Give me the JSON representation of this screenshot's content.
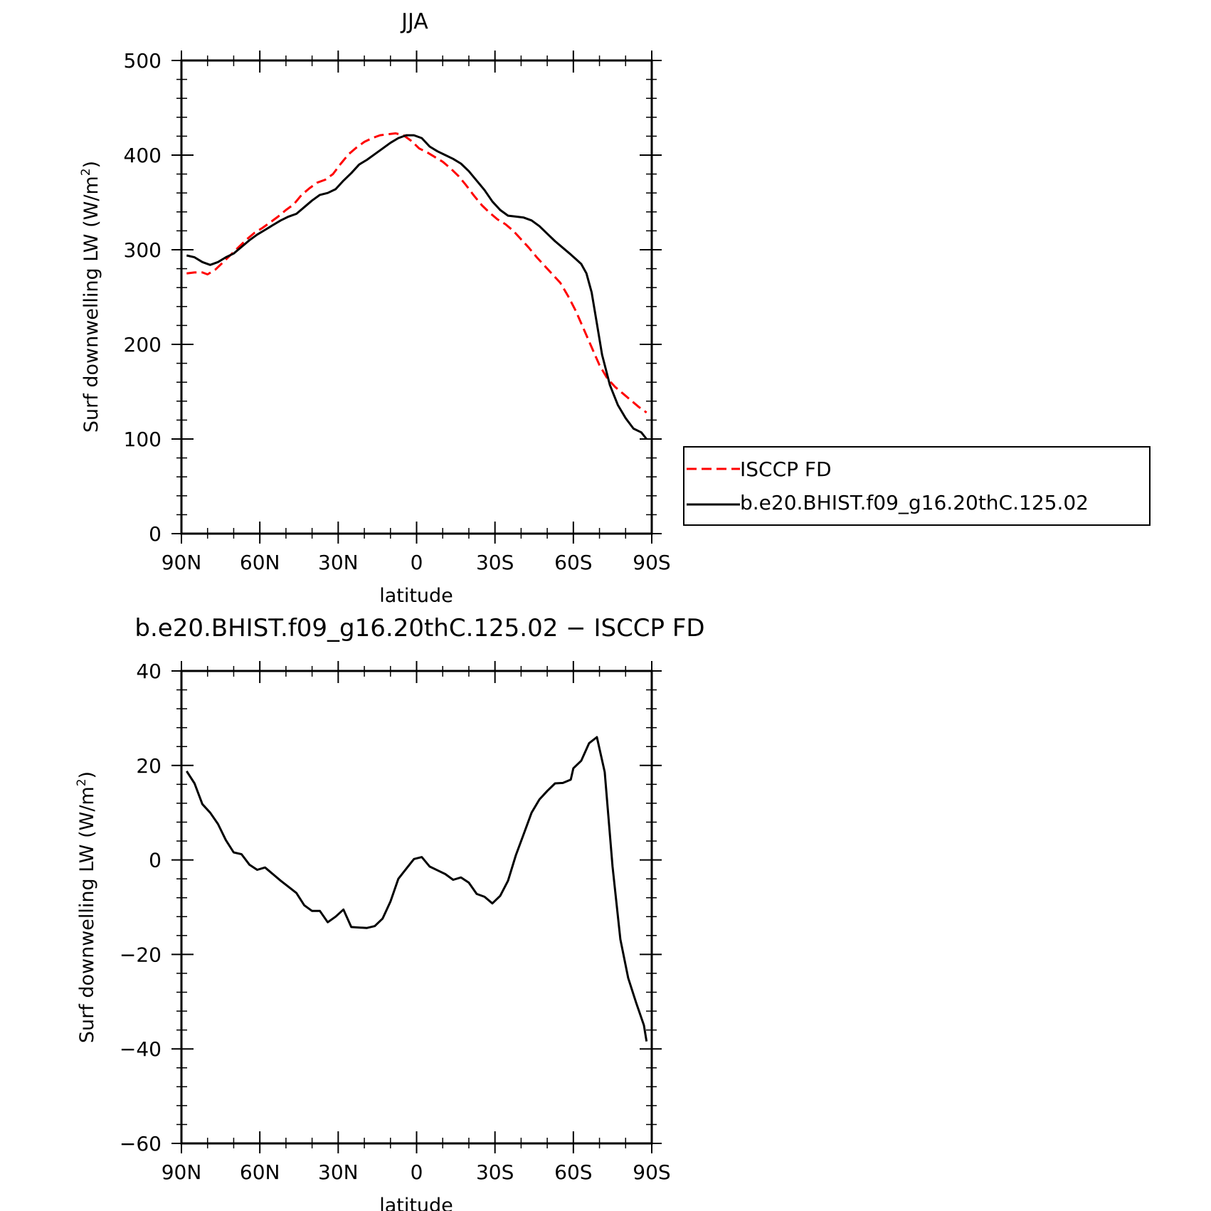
{
  "chart_data": [
    {
      "type": "line",
      "title": "JJA",
      "xlabel": "latitude",
      "ylabel": "Surf downwelling LW (W/m",
      "ylabel_sup": "2",
      "ylabel_close": ")",
      "xlim": [
        90,
        -90
      ],
      "ylim": [
        0,
        500
      ],
      "yticks": [
        0,
        100,
        200,
        300,
        400,
        500
      ],
      "xticks": [
        90,
        60,
        30,
        0,
        -30,
        -60,
        -90
      ],
      "xticklabels": [
        "90N",
        "60N",
        "30N",
        "0",
        "30S",
        "60S",
        "90S"
      ],
      "legend": {
        "placement": "right"
      },
      "series": [
        {
          "name": "ISCCP FD",
          "color": "#ff0000",
          "dash": "dashed",
          "x": [
            88,
            85,
            82,
            80,
            77,
            74,
            71,
            68,
            65,
            62,
            59,
            56,
            53,
            50,
            47,
            44,
            41,
            38,
            35,
            32,
            29,
            26,
            23,
            20,
            17,
            14,
            11,
            8,
            5,
            2,
            -1,
            -4,
            -7,
            -10,
            -13,
            -16,
            -19,
            -22,
            -25,
            -28,
            -31,
            -34,
            -37,
            -40,
            -43,
            -46,
            -49,
            -52,
            -55,
            -58,
            -61,
            -64,
            -67,
            -70,
            -73,
            -76,
            -79,
            -82,
            -85,
            -88
          ],
          "y": [
            275,
            276,
            276,
            274,
            279,
            287,
            295,
            303,
            311,
            318,
            323,
            329,
            335,
            342,
            348,
            358,
            365,
            371,
            374,
            380,
            391,
            401,
            408,
            414,
            418,
            421,
            422,
            423,
            421,
            415,
            407,
            403,
            398,
            393,
            386,
            378,
            368,
            357,
            347,
            339,
            332,
            327,
            320,
            311,
            302,
            292,
            283,
            274,
            265,
            251,
            235,
            216,
            197,
            178,
            164,
            155,
            148,
            141,
            134,
            128
          ]
        },
        {
          "name": "b.e20.BHIST.f09_g16.20thC.125.02",
          "color": "#000000",
          "dash": "solid",
          "x": [
            88,
            85,
            82,
            79,
            76,
            73,
            70,
            67,
            64,
            61,
            58,
            55,
            52,
            49,
            46,
            43,
            40,
            37,
            34,
            31,
            28,
            25,
            22,
            19,
            16,
            13,
            10,
            7,
            4,
            1,
            -2,
            -5,
            -8,
            -11,
            -14,
            -17,
            -20,
            -23,
            -26,
            -29,
            -32,
            -35,
            -38,
            -41,
            -44,
            -47,
            -50,
            -53,
            -56,
            -59,
            -61,
            -63,
            -65,
            -67,
            -69,
            -71,
            -74,
            -77,
            -80,
            -83,
            -86,
            -88
          ],
          "y": [
            294,
            292,
            287,
            284,
            287,
            292,
            296,
            303,
            310,
            316,
            321,
            326,
            331,
            335,
            338,
            345,
            352,
            358,
            360,
            364,
            373,
            381,
            390,
            395,
            401,
            407,
            413,
            418,
            421,
            421,
            418,
            409,
            404,
            400,
            396,
            391,
            383,
            373,
            363,
            351,
            342,
            336,
            335,
            334,
            331,
            325,
            317,
            309,
            302,
            295,
            290,
            285,
            275,
            255,
            222,
            189,
            157,
            136,
            122,
            111,
            107,
            100
          ]
        }
      ]
    },
    {
      "type": "line",
      "title": "b.e20.BHIST.f09_g16.20thC.125.02 − ISCCP FD",
      "xlabel": "latitude",
      "ylabel": "Surf downwelling LW (W/m",
      "ylabel_sup": "2",
      "ylabel_close": ")",
      "xlim": [
        90,
        -90
      ],
      "ylim": [
        -60,
        40
      ],
      "yticks": [
        -60,
        -40,
        -20,
        0,
        20,
        40
      ],
      "yticklabels": [
        "−60",
        "−40",
        "−20",
        "0",
        "20",
        "40"
      ],
      "xticks": [
        90,
        60,
        30,
        0,
        -30,
        -60,
        -90
      ],
      "xticklabels": [
        "90N",
        "60N",
        "30N",
        "0",
        "30S",
        "60S",
        "90S"
      ],
      "series": [
        {
          "color": "#000000",
          "dash": "solid",
          "x": [
            88,
            85,
            82,
            79,
            76,
            73,
            70,
            67,
            64,
            61,
            58,
            55,
            52,
            49,
            46,
            43,
            40,
            37,
            34,
            31,
            28,
            25,
            22,
            19,
            16,
            13,
            10,
            7,
            4,
            1,
            -2,
            -5,
            -8,
            -11,
            -14,
            -17,
            -20,
            -23,
            -26,
            -29,
            -32,
            -35,
            -38,
            -41,
            -44,
            -47,
            -50,
            -53,
            -56,
            -59,
            -60,
            -63,
            -66,
            -69,
            -72,
            -75,
            -78,
            -81,
            -84,
            -87,
            -88
          ],
          "y": [
            18.8,
            16.2,
            11.8,
            10.0,
            7.6,
            4.2,
            1.6,
            1.2,
            -1.0,
            -2.1,
            -1.6,
            -3.0,
            -4.4,
            -5.7,
            -7.0,
            -9.6,
            -10.8,
            -10.8,
            -13.2,
            -12.0,
            -10.5,
            -14.2,
            -14.3,
            -14.4,
            -14.0,
            -12.4,
            -8.8,
            -4.0,
            -1.9,
            0.2,
            0.6,
            -1.4,
            -2.2,
            -3.0,
            -4.2,
            -3.7,
            -4.8,
            -7.2,
            -7.8,
            -9.2,
            -7.6,
            -4.4,
            1.0,
            5.5,
            10.0,
            12.8,
            14.6,
            16.2,
            16.3,
            17.0,
            19.4,
            21.0,
            24.7,
            26.0,
            18.6,
            -1.4,
            -16.8,
            -25.0,
            -30.2,
            -35.0,
            -38.4
          ]
        }
      ]
    }
  ]
}
